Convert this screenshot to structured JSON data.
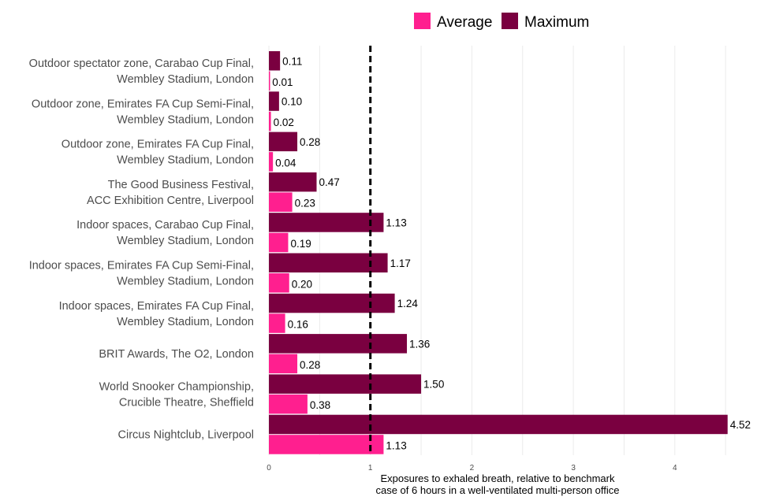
{
  "chart_data": {
    "type": "bar",
    "orientation": "horizontal",
    "categories": [
      [
        "Outdoor spectator zone, Carabao Cup Final,",
        "Wembley Stadium, London"
      ],
      [
        "Outdoor zone, Emirates FA Cup Semi-Final,",
        "Wembley Stadium, London"
      ],
      [
        "Outdoor zone, Emirates FA Cup Final,",
        "Wembley Stadium, London"
      ],
      [
        "The Good Business Festival,",
        "ACC Exhibition Centre, Liverpool"
      ],
      [
        "Indoor spaces, Carabao Cup Final,",
        "Wembley Stadium, London"
      ],
      [
        "Indoor spaces, Emirates FA Cup Semi-Final,",
        "Wembley Stadium, London"
      ],
      [
        "Indoor spaces, Emirates FA Cup Final,",
        "Wembley Stadium, London"
      ],
      [
        "BRIT Awards, The O2, London"
      ],
      [
        "World Snooker Championship,",
        "Crucible Theatre, Sheffield"
      ],
      [
        "Circus Nightclub, Liverpool"
      ]
    ],
    "series": [
      {
        "name": "Average",
        "color": "#ff1f8f",
        "values": [
          0.01,
          0.02,
          0.04,
          0.23,
          0.19,
          0.2,
          0.16,
          0.28,
          0.38,
          1.13
        ],
        "labels": [
          "0.01",
          "0.02",
          "0.04",
          "0.23",
          "0.19",
          "0.20",
          "0.16",
          "0.28",
          "0.38",
          "1.13"
        ]
      },
      {
        "name": "Maximum",
        "color": "#7a0040",
        "values": [
          0.11,
          0.1,
          0.28,
          0.47,
          1.13,
          1.17,
          1.24,
          1.36,
          1.5,
          4.52
        ],
        "labels": [
          "0.11",
          "0.10",
          "0.28",
          "0.47",
          "1.13",
          "1.17",
          "1.24",
          "1.36",
          "1.50",
          "4.52"
        ]
      }
    ],
    "xticks": [
      "0",
      "1",
      "2",
      "3",
      "4"
    ],
    "xlim": [
      0,
      4.52
    ],
    "xlabel": [
      "Exposures to exhaled breath, relative to benchmark",
      "case of 6 hours in a well-ventilated multi-person office"
    ],
    "reference_line": {
      "x": 1,
      "style": "dashed",
      "color": "#000000"
    },
    "legend_position": "top",
    "grid": "vertical"
  }
}
